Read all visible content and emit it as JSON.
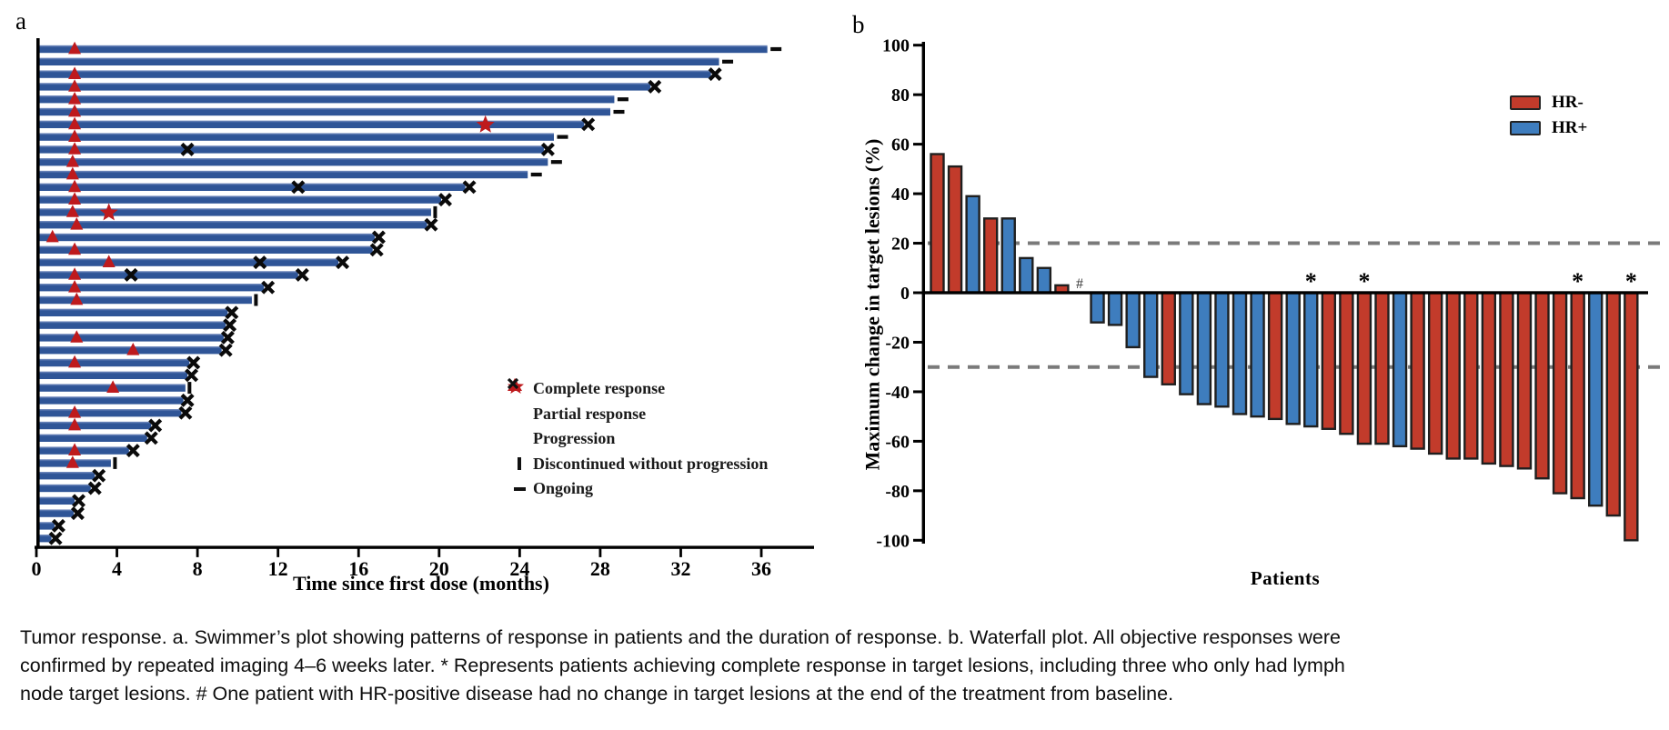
{
  "panels": {
    "a_label": "a",
    "b_label": "b"
  },
  "colors": {
    "swimmer_bar": "#2F5597",
    "swimmer_bar_hilite": "#7E94C4",
    "marker_red": "#BE1A1D",
    "wf_red": "#C23B2B",
    "wf_blue": "#3E7DBE",
    "bar_border": "#1F1F1F",
    "dash_gray": "#7A7A7A",
    "axis": "#000000"
  },
  "chart_data": [
    {
      "type": "bar",
      "id": "swimmer",
      "orientation": "horizontal",
      "xlabel": "Time since first dose (months)",
      "x_ticks": [
        0,
        4,
        8,
        12,
        16,
        20,
        24,
        28,
        32,
        36
      ],
      "xlim": [
        0,
        38.5
      ],
      "grid": false,
      "legend_position": "lower-right-inside",
      "legend": [
        {
          "marker": "star",
          "label": "Complete response"
        },
        {
          "marker": "triangle",
          "label": "Partial response"
        },
        {
          "marker": "x",
          "label": "Progression"
        },
        {
          "marker": "vbar",
          "label": "Discontinued without progression"
        },
        {
          "marker": "dash",
          "label": "Ongoing"
        }
      ],
      "patients": [
        {
          "duration": 36.3,
          "end": "ongoing",
          "pr": 1.9,
          "cr": null,
          "prog": null
        },
        {
          "duration": 33.9,
          "end": "ongoing",
          "pr": null,
          "cr": null,
          "prog": null
        },
        {
          "duration": 33.5,
          "end": "x",
          "pr": 1.9,
          "cr": null,
          "prog": null
        },
        {
          "duration": 30.5,
          "end": "x",
          "pr": 1.9,
          "cr": null,
          "prog": null
        },
        {
          "duration": 28.7,
          "end": "ongoing",
          "pr": 1.9,
          "cr": null,
          "prog": null
        },
        {
          "duration": 28.5,
          "end": "ongoing",
          "pr": 1.9,
          "cr": null,
          "prog": null
        },
        {
          "duration": 27.2,
          "end": "x",
          "pr": 1.9,
          "cr": 22.3,
          "prog": null
        },
        {
          "duration": 25.7,
          "end": "ongoing",
          "pr": 1.9,
          "cr": null,
          "prog": null
        },
        {
          "duration": 25.2,
          "end": "x",
          "pr": 1.9,
          "cr": null,
          "prog": 7.5
        },
        {
          "duration": 25.4,
          "end": "ongoing",
          "pr": 1.8,
          "cr": null,
          "prog": null
        },
        {
          "duration": 24.4,
          "end": "ongoing",
          "pr": 1.8,
          "cr": null,
          "prog": null
        },
        {
          "duration": 21.3,
          "end": "x",
          "pr": 1.9,
          "cr": null,
          "prog": 13.0
        },
        {
          "duration": 20.1,
          "end": "x",
          "pr": 1.9,
          "cr": null,
          "prog": null
        },
        {
          "duration": 19.6,
          "end": "disc",
          "pr": 1.8,
          "cr": 3.6,
          "prog": null
        },
        {
          "duration": 19.4,
          "end": "x",
          "pr": 2.0,
          "cr": null,
          "prog": null
        },
        {
          "duration": 16.8,
          "end": "x",
          "pr": 0.8,
          "cr": null,
          "prog": null
        },
        {
          "duration": 16.7,
          "end": "x",
          "pr": 1.9,
          "cr": null,
          "prog": null
        },
        {
          "duration": 15.0,
          "end": "x",
          "pr": 3.6,
          "cr": null,
          "prog": 11.1
        },
        {
          "duration": 13.0,
          "end": "x",
          "pr": 1.9,
          "cr": null,
          "prog": 4.7
        },
        {
          "duration": 11.3,
          "end": "x",
          "pr": 1.9,
          "cr": null,
          "prog": null
        },
        {
          "duration": 10.7,
          "end": "disc",
          "pr": 2.0,
          "cr": null,
          "prog": null
        },
        {
          "duration": 9.5,
          "end": "x",
          "pr": null,
          "cr": null,
          "prog": null
        },
        {
          "duration": 9.4,
          "end": "x",
          "pr": null,
          "cr": null,
          "prog": null
        },
        {
          "duration": 9.3,
          "end": "x",
          "pr": 2.0,
          "cr": null,
          "prog": null
        },
        {
          "duration": 9.2,
          "end": "x",
          "pr": 4.8,
          "cr": null,
          "prog": null
        },
        {
          "duration": 7.6,
          "end": "x",
          "pr": 1.9,
          "cr": null,
          "prog": null
        },
        {
          "duration": 7.5,
          "end": "x",
          "pr": null,
          "cr": null,
          "prog": null
        },
        {
          "duration": 7.4,
          "end": "disc",
          "pr": 3.8,
          "cr": null,
          "prog": null
        },
        {
          "duration": 7.3,
          "end": "x",
          "pr": null,
          "cr": null,
          "prog": null
        },
        {
          "duration": 7.2,
          "end": "x",
          "pr": 1.9,
          "cr": null,
          "prog": null
        },
        {
          "duration": 5.7,
          "end": "x",
          "pr": 1.9,
          "cr": null,
          "prog": null
        },
        {
          "duration": 5.5,
          "end": "x",
          "pr": null,
          "cr": null,
          "prog": null
        },
        {
          "duration": 4.6,
          "end": "x",
          "pr": 1.9,
          "cr": null,
          "prog": null
        },
        {
          "duration": 3.7,
          "end": "disc",
          "pr": 1.8,
          "cr": null,
          "prog": null
        },
        {
          "duration": 2.9,
          "end": "x",
          "pr": null,
          "cr": null,
          "prog": null
        },
        {
          "duration": 2.7,
          "end": "x",
          "pr": null,
          "cr": null,
          "prog": null
        },
        {
          "duration": 1.9,
          "end": "x",
          "pr": null,
          "cr": null,
          "prog": null
        },
        {
          "duration": 1.85,
          "end": "x",
          "pr": null,
          "cr": null,
          "prog": null
        },
        {
          "duration": 0.9,
          "end": "x",
          "pr": null,
          "cr": null,
          "prog": null
        },
        {
          "duration": 0.75,
          "end": "x",
          "pr": null,
          "cr": null,
          "prog": null
        }
      ]
    },
    {
      "type": "bar",
      "id": "waterfall",
      "ylabel": "Maximum change in target lesions (%)",
      "xlabel": "Patients",
      "ylim": [
        -100,
        100
      ],
      "y_ticks": [
        100,
        80,
        60,
        40,
        20,
        0,
        -20,
        -40,
        -60,
        -80,
        -100
      ],
      "reference_lines": [
        20,
        -30
      ],
      "grid": false,
      "legend_position": "upper-right-inside",
      "legend": [
        {
          "label": "HR-",
          "color_key": "wf_red"
        },
        {
          "label": "HR+",
          "color_key": "wf_blue"
        }
      ],
      "hash_note_symbol": "#",
      "star_symbol": "*",
      "patients": [
        {
          "value": 56,
          "group": "HR-",
          "star": false,
          "hash": false
        },
        {
          "value": 51,
          "group": "HR-",
          "star": false,
          "hash": false
        },
        {
          "value": 39,
          "group": "HR+",
          "star": false,
          "hash": false
        },
        {
          "value": 30,
          "group": "HR-",
          "star": false,
          "hash": false
        },
        {
          "value": 30,
          "group": "HR+",
          "star": false,
          "hash": false
        },
        {
          "value": 14,
          "group": "HR+",
          "star": false,
          "hash": false
        },
        {
          "value": 10,
          "group": "HR+",
          "star": false,
          "hash": false
        },
        {
          "value": 3,
          "group": "HR-",
          "star": false,
          "hash": false
        },
        {
          "value": 0,
          "group": "HR+",
          "star": false,
          "hash": true
        },
        {
          "value": -12,
          "group": "HR+",
          "star": false,
          "hash": false
        },
        {
          "value": -13,
          "group": "HR+",
          "star": false,
          "hash": false
        },
        {
          "value": -22,
          "group": "HR+",
          "star": false,
          "hash": false
        },
        {
          "value": -34,
          "group": "HR+",
          "star": false,
          "hash": false
        },
        {
          "value": -37,
          "group": "HR-",
          "star": false,
          "hash": false
        },
        {
          "value": -41,
          "group": "HR+",
          "star": false,
          "hash": false
        },
        {
          "value": -45,
          "group": "HR+",
          "star": false,
          "hash": false
        },
        {
          "value": -46,
          "group": "HR+",
          "star": false,
          "hash": false
        },
        {
          "value": -49,
          "group": "HR+",
          "star": false,
          "hash": false
        },
        {
          "value": -50,
          "group": "HR+",
          "star": false,
          "hash": false
        },
        {
          "value": -51,
          "group": "HR-",
          "star": false,
          "hash": false
        },
        {
          "value": -53,
          "group": "HR+",
          "star": false,
          "hash": false
        },
        {
          "value": -54,
          "group": "HR+",
          "star": true,
          "hash": false
        },
        {
          "value": -55,
          "group": "HR-",
          "star": false,
          "hash": false
        },
        {
          "value": -57,
          "group": "HR-",
          "star": false,
          "hash": false
        },
        {
          "value": -61,
          "group": "HR-",
          "star": true,
          "hash": false
        },
        {
          "value": -61,
          "group": "HR-",
          "star": false,
          "hash": false
        },
        {
          "value": -62,
          "group": "HR+",
          "star": false,
          "hash": false
        },
        {
          "value": -63,
          "group": "HR-",
          "star": false,
          "hash": false
        },
        {
          "value": -65,
          "group": "HR-",
          "star": false,
          "hash": false
        },
        {
          "value": -67,
          "group": "HR-",
          "star": false,
          "hash": false
        },
        {
          "value": -67,
          "group": "HR-",
          "star": false,
          "hash": false
        },
        {
          "value": -69,
          "group": "HR-",
          "star": false,
          "hash": false
        },
        {
          "value": -70,
          "group": "HR-",
          "star": false,
          "hash": false
        },
        {
          "value": -71,
          "group": "HR-",
          "star": false,
          "hash": false
        },
        {
          "value": -75,
          "group": "HR-",
          "star": false,
          "hash": false
        },
        {
          "value": -81,
          "group": "HR-",
          "star": false,
          "hash": false
        },
        {
          "value": -83,
          "group": "HR-",
          "star": true,
          "hash": false
        },
        {
          "value": -86,
          "group": "HR+",
          "star": false,
          "hash": false
        },
        {
          "value": -90,
          "group": "HR-",
          "star": false,
          "hash": false
        },
        {
          "value": -100,
          "group": "HR-",
          "star": true,
          "hash": false
        }
      ]
    }
  ],
  "caption": {
    "lines": [
      "Tumor response. a. Swimmer’s plot showing patterns of response in patients and the duration of response. b. Waterfall plot. All objective responses were",
      "confirmed by repeated imaging 4–6 weeks later. * Represents patients achieving complete response in target lesions, including three who only had lymph",
      "node target lesions. # One patient with HR-positive disease had no change in target lesions at the end of the treatment from baseline."
    ]
  }
}
